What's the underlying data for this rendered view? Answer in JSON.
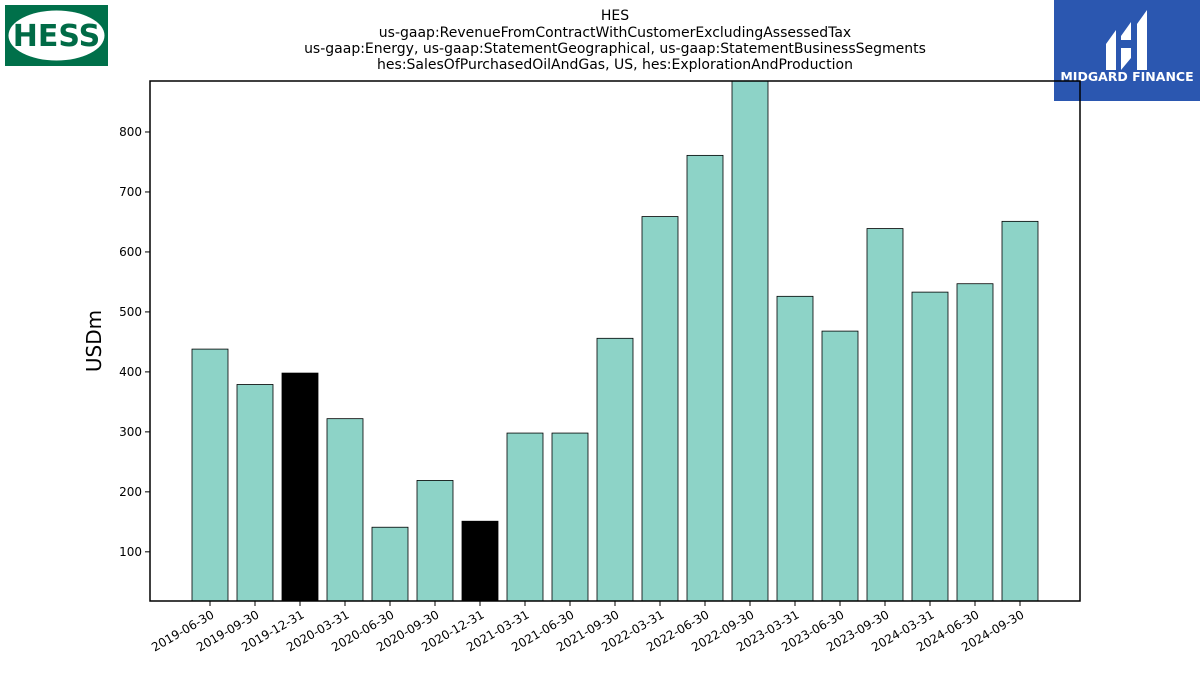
{
  "title_lines": [
    "HES",
    "us-gaap:RevenueFromContractWithCustomerExcludingAssessedTax",
    "us-gaap:Energy, us-gaap:StatementGeographical, us-gaap:StatementBusinessSegments",
    "hes:SalesOfPurchasedOilAndGas, US, hes:ExplorationAndProduction"
  ],
  "logos": {
    "left": {
      "text": "HESS",
      "color": "#00704a"
    },
    "right": {
      "text": "MIDGARD FINANCE",
      "color": "#2b57b0"
    }
  },
  "chart_data": {
    "type": "bar",
    "title": "HES us-gaap:RevenueFromContractWithCustomerExcludingAssessedTax us-gaap:Energy, us-gaap:StatementGeographical, us-gaap:StatementBusinessSegments hes:SalesOfPurchasedOilAndGas, US, hes:ExplorationAndProduction",
    "xlabel": "",
    "ylabel": "USDm",
    "ylim": [
      18,
      885
    ],
    "yticks": [
      100,
      200,
      300,
      400,
      500,
      600,
      700,
      800
    ],
    "grid": false,
    "categories": [
      "2019-06-30",
      "2019-09-30",
      "2019-12-31",
      "2020-03-31",
      "2020-06-30",
      "2020-09-30",
      "2020-12-31",
      "2021-03-31",
      "2021-06-30",
      "2021-09-30",
      "2022-03-31",
      "2022-06-30",
      "2022-09-30",
      "2023-03-31",
      "2023-06-30",
      "2023-09-30",
      "2024-03-31",
      "2024-06-30",
      "2024-09-30"
    ],
    "values": [
      438,
      379,
      398,
      322,
      141,
      219,
      151,
      298,
      298,
      456,
      659,
      761,
      885,
      526,
      468,
      639,
      533,
      547,
      651
    ],
    "highlighted": [
      "2019-12-31",
      "2020-12-31"
    ],
    "colors": {
      "bar": "#8dd3c7",
      "highlight": "#000000",
      "edge": "#000000"
    }
  }
}
